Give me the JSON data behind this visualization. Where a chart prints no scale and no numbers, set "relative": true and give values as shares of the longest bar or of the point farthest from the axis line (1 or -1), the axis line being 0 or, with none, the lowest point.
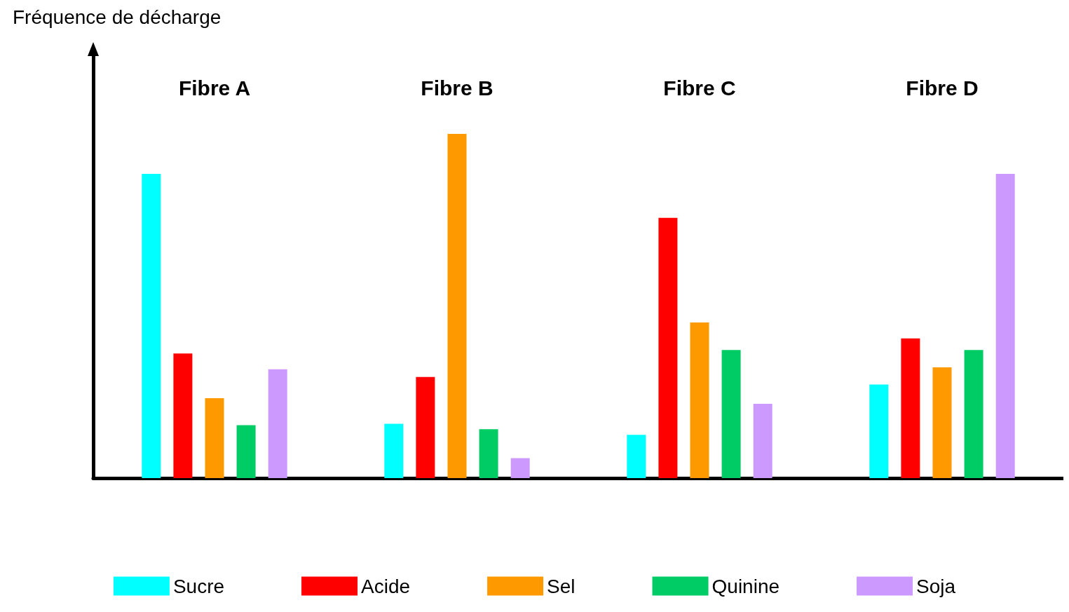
{
  "chart_data": {
    "type": "bar",
    "ylabel": "Fréquence de décharge",
    "categories": [
      "Fibre A",
      "Fibre B",
      "Fibre C",
      "Fibre D"
    ],
    "relative": true,
    "legend": "bottom",
    "grid": false,
    "series": [
      {
        "name": "Sucre",
        "color": "#00ffff",
        "values": [
          0.884,
          0.158,
          0.126,
          0.272
        ]
      },
      {
        "name": "Acide",
        "color": "#ff0000",
        "values": [
          0.362,
          0.294,
          0.756,
          0.406
        ]
      },
      {
        "name": "Sel",
        "color": "#ff9900",
        "values": [
          0.232,
          1,
          0.452,
          0.322
        ]
      },
      {
        "name": "Quinine",
        "color": "#00cc66",
        "values": [
          0.154,
          0.142,
          0.372,
          0.372
        ]
      },
      {
        "name": "Soja",
        "color": "#cc99ff",
        "values": [
          0.316,
          0.058,
          0.216,
          0.884
        ]
      }
    ]
  }
}
